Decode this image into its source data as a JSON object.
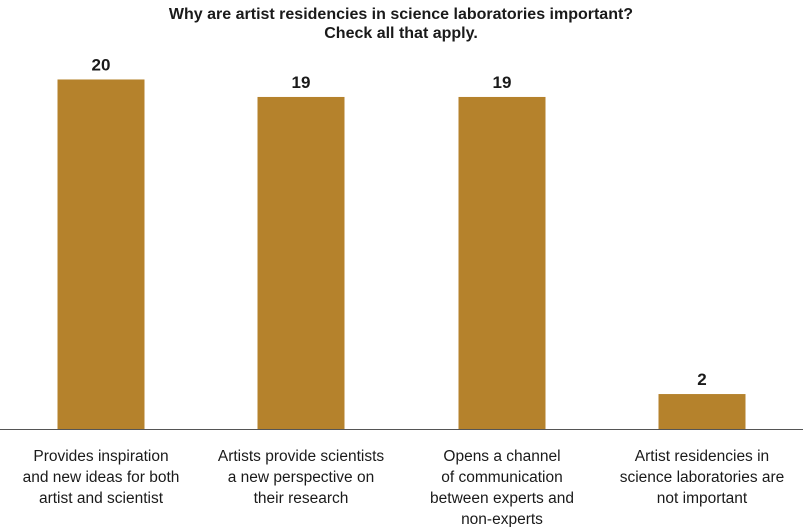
{
  "chart_data": {
    "type": "bar",
    "title_lines": [
      "Why are artist residencies in science laboratories important?",
      "Check all that apply."
    ],
    "categories": [
      [
        "Provides inspiration",
        "and new ideas for both",
        "artist and scientist"
      ],
      [
        "Artists provide scientists",
        "a new perspective on",
        "their research"
      ],
      [
        "Opens a channel",
        "of communication",
        "between experts and",
        "non-experts"
      ],
      [
        "Artist residencies in",
        "science laboratories are",
        "not important"
      ]
    ],
    "values": [
      20,
      19,
      19,
      2
    ],
    "data_labels": [
      "20",
      "19",
      "19",
      "2"
    ],
    "ylim": [
      0,
      21
    ],
    "grid": false,
    "legend": "none",
    "bar_color": "#b5822c",
    "axis_color": "#555555"
  }
}
